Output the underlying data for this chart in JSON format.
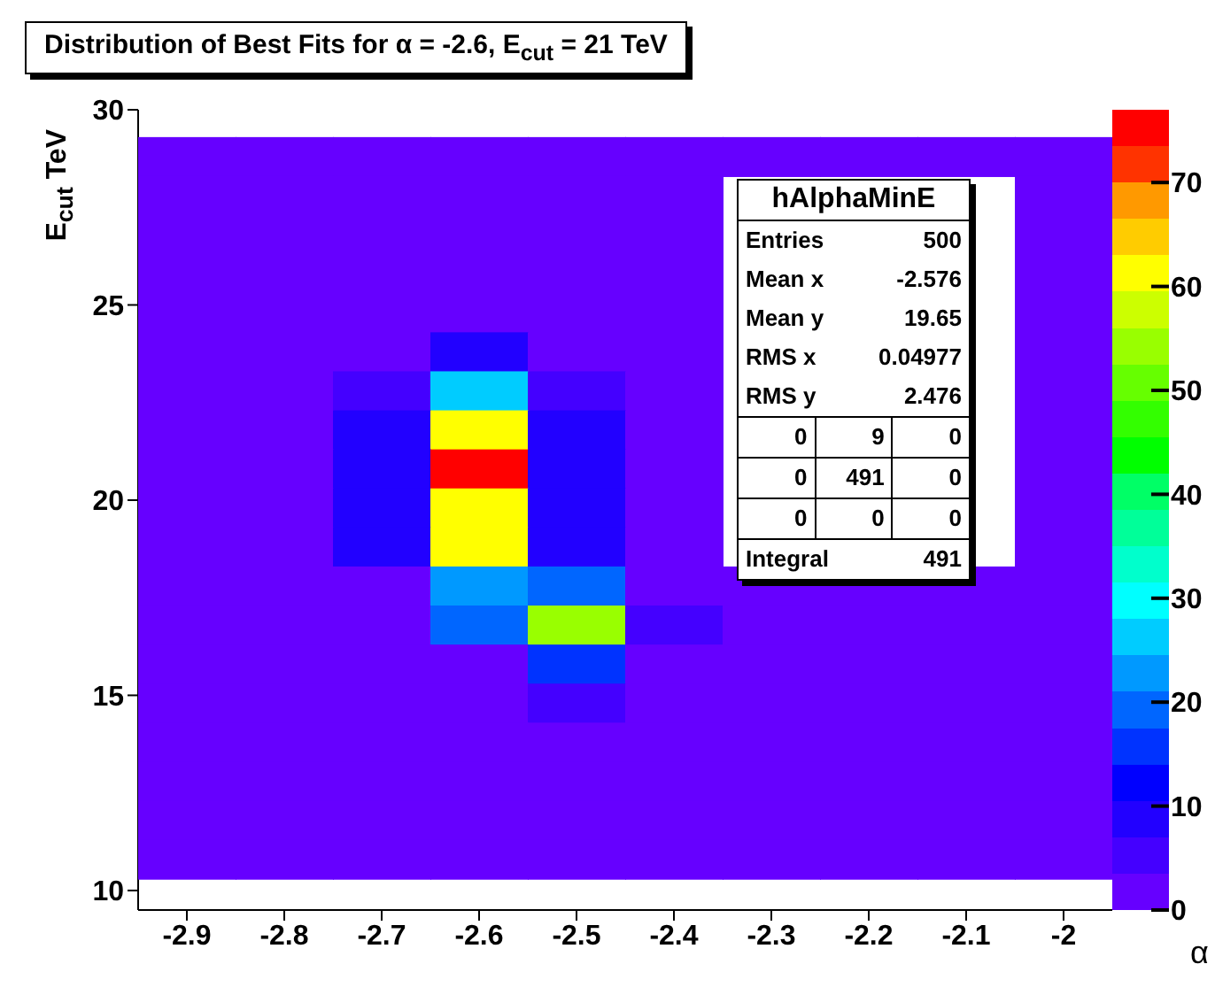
{
  "chart_data": {
    "type": "heatmap",
    "title": "Distribution of Best Fits for α = -2.6, E$_{cut}$ = 21 TeV",
    "xlabel": "α",
    "ylabel": "E$_{cut}$ TeV",
    "x": [
      -2.9,
      -2.8,
      -2.7,
      -2.6,
      -2.5,
      -2.4,
      -2.3,
      -2.2,
      -2.1,
      -2.0
    ],
    "y": [
      28.8,
      27.8,
      26.8,
      25.8,
      24.8,
      23.8,
      22.8,
      21.8,
      20.8,
      19.8,
      18.8,
      17.8,
      16.8,
      15.8,
      14.8,
      13.8,
      12.8,
      11.8,
      10.8
    ],
    "cells": [
      [
        0,
        0,
        0,
        0,
        0,
        0,
        0,
        0,
        0,
        0
      ],
      [
        0,
        0,
        0,
        0,
        0,
        0,
        null,
        null,
        null,
        0
      ],
      [
        0,
        0,
        0,
        0,
        0,
        0,
        null,
        null,
        null,
        0
      ],
      [
        0,
        0,
        0,
        0,
        0,
        0,
        null,
        null,
        null,
        0
      ],
      [
        0,
        0,
        0,
        0,
        0,
        0,
        null,
        null,
        null,
        0
      ],
      [
        0,
        0,
        0,
        8,
        0,
        0,
        null,
        null,
        null,
        0
      ],
      [
        0,
        0,
        5,
        25,
        5,
        0,
        null,
        null,
        null,
        0
      ],
      [
        0,
        0,
        8,
        62,
        8,
        0,
        null,
        null,
        null,
        0
      ],
      [
        0,
        0,
        8,
        75,
        8,
        0,
        null,
        null,
        null,
        0
      ],
      [
        0,
        0,
        8,
        62,
        8,
        0,
        null,
        null,
        null,
        0
      ],
      [
        0,
        0,
        8,
        60,
        10,
        0,
        null,
        null,
        null,
        0
      ],
      [
        0,
        0,
        3,
        22,
        18,
        0,
        0,
        0,
        0,
        0
      ],
      [
        0,
        0,
        0,
        18,
        55,
        5,
        0,
        0,
        0,
        0
      ],
      [
        0,
        0,
        0,
        0,
        15,
        0,
        0,
        0,
        0,
        0
      ],
      [
        0,
        0,
        0,
        0,
        5,
        0,
        0,
        0,
        0,
        0
      ],
      [
        0,
        0,
        0,
        0,
        0,
        0,
        0,
        0,
        0,
        0
      ],
      [
        0,
        0,
        0,
        0,
        0,
        0,
        0,
        0,
        0,
        0
      ],
      [
        0,
        0,
        0,
        0,
        0,
        0,
        0,
        0,
        0,
        0
      ],
      [
        0,
        0,
        0,
        0,
        0,
        0,
        0,
        0,
        0,
        0
      ]
    ],
    "colors": [
      "#6600ff",
      "#4400ff",
      "#2200ff",
      "#0000ff",
      "#0033ff",
      "#0066ff",
      "#0099ff",
      "#00ccff",
      "#00ffff",
      "#00ffcc",
      "#00ff99",
      "#00ff66",
      "#00ff00",
      "#33ff00",
      "#66ff00",
      "#99ff00",
      "#ccff00",
      "#ffff00",
      "#ffcc00",
      "#ff9900",
      "#ff3300",
      "#ff0000"
    ],
    "clim": [
      0,
      77
    ],
    "cticks": [
      0,
      10,
      20,
      30,
      40,
      50,
      60,
      70
    ],
    "xlim": [
      -2.95,
      -1.95
    ],
    "xticks": [
      -2.9,
      -2.8,
      -2.7,
      -2.6,
      -2.5,
      -2.4,
      -2.3,
      -2.2,
      -2.1,
      -2
    ],
    "ylim": [
      9.5,
      30
    ],
    "yticks": [
      10,
      15,
      20,
      25,
      30
    ],
    "annotations": [
      "hAlphaMinE",
      "Entries",
      "500",
      "Mean x",
      "-2.576",
      "Mean y",
      "19.65",
      "RMS x",
      "0.04977",
      "RMS y",
      "2.476",
      "0",
      "9",
      "0",
      "0",
      "491",
      "0",
      "0",
      "0",
      "0",
      "Integral",
      "491"
    ]
  }
}
